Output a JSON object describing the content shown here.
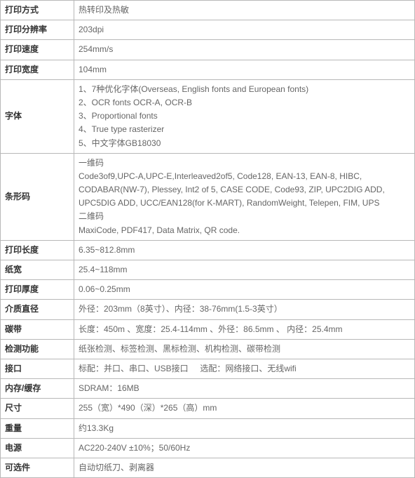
{
  "rows": [
    {
      "label": "打印方式",
      "value": "热转印及热敏"
    },
    {
      "label": "打印分辨率",
      "value": "203dpi"
    },
    {
      "label": "打印速度",
      "value": "254mm/s"
    },
    {
      "label": "打印宽度",
      "value": "104mm"
    },
    {
      "label": "字体",
      "lines": [
        "1、7种优化字体(Overseas, English fonts and European fonts)",
        "2、OCR fonts OCR-A, OCR-B",
        "3、Proportional fonts",
        "4、True type rasterizer",
        "5、中文字体GB18030"
      ]
    },
    {
      "label": "条形码",
      "lines": [
        "一维码",
        "Code3of9,UPC-A,UPC-E,Interleaved2of5, Code128, EAN-13, EAN-8, HIBC, CODABAR(NW-7), Plessey, Int2 of 5, CASE CODE, Code93, ZIP, UPC2DIG ADD, UPC5DIG ADD, UCC/EAN128(for K-MART), RandomWeight, Telepen, FIM, UPS",
        "二维码",
        "MaxiCode, PDF417, Data Matrix,  QR code."
      ]
    },
    {
      "label": "打印长度",
      "value": "6.35~812.8mm"
    },
    {
      "label": "纸宽",
      "value": "25.4~118mm"
    },
    {
      "label": "打印厚度",
      "value": "0.06~0.25mm"
    },
    {
      "label": "介质直径",
      "value": "外径：203mm（8英寸）、内径：38-76mm(1.5-3英寸）"
    },
    {
      "label": "碳带",
      "value": "长度：450m 、宽度：25.4-114mm 、外径：86.5mm 、 内径：25.4mm"
    },
    {
      "label": "检测功能",
      "value": "纸张检测、标签检测、黑标检测、机构检测、碳带检测"
    },
    {
      "label": "接口",
      "value": "标配：并口、串口、USB接口     选配：网络接口、无线wifi"
    },
    {
      "label": "内存/缓存",
      "value": "SDRAM：16MB"
    },
    {
      "label": "尺寸",
      "value": "255（宽）*490（深）*265（高）mm"
    },
    {
      "label": "重量",
      "value": "约13.3Kg"
    },
    {
      "label": "电源",
      "value": "AC220-240V ±10%；50/60Hz"
    },
    {
      "label": "可选件",
      "value": "自动切纸刀、剥离器"
    }
  ]
}
